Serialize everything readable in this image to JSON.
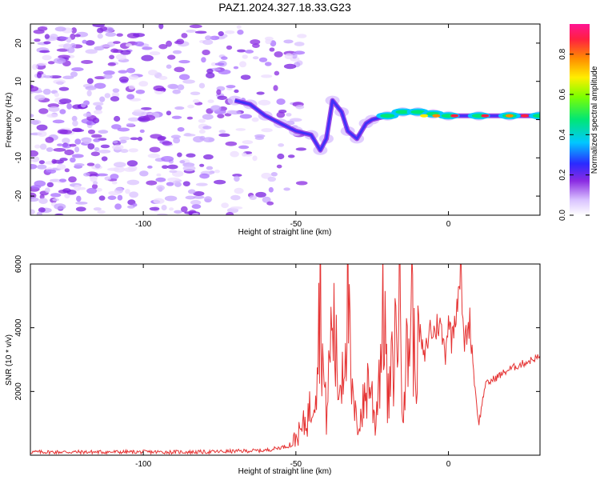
{
  "title": "PAZ1.2024.327.18.33.G23",
  "chart_data": [
    {
      "type": "heatmap",
      "xlabel": "Height of straight line (km)",
      "ylabel": "Frequency (Hz)",
      "xlim": [
        -137,
        30
      ],
      "ylim": [
        -25,
        25
      ],
      "xticks": [
        -100,
        -50,
        0
      ],
      "yticks": [
        -20,
        -10,
        0,
        10,
        20
      ],
      "colorbar": {
        "label": "Normalized spectral amplitude",
        "range": [
          0,
          0.95
        ],
        "ticks": [
          "0.0",
          "0.2",
          "0.4",
          "0.6",
          "0.8"
        ]
      },
      "signal_track": [
        {
          "x": -70,
          "y": 5
        },
        {
          "x": -65,
          "y": 4
        },
        {
          "x": -60,
          "y": 1
        },
        {
          "x": -55,
          "y": -1
        },
        {
          "x": -50,
          "y": -3
        },
        {
          "x": -45,
          "y": -4
        },
        {
          "x": -42,
          "y": -8
        },
        {
          "x": -40,
          "y": -5
        },
        {
          "x": -38,
          "y": 5
        },
        {
          "x": -35,
          "y": 2
        },
        {
          "x": -33,
          "y": -3
        },
        {
          "x": -30,
          "y": -5
        },
        {
          "x": -27,
          "y": -1
        },
        {
          "x": -25,
          "y": 0
        },
        {
          "x": -20,
          "y": 1
        },
        {
          "x": -15,
          "y": 2
        },
        {
          "x": -10,
          "y": 2
        },
        {
          "x": -5,
          "y": 1.5
        },
        {
          "x": 0,
          "y": 1
        },
        {
          "x": 10,
          "y": 1
        },
        {
          "x": 20,
          "y": 1
        },
        {
          "x": 30,
          "y": 1
        }
      ]
    },
    {
      "type": "line",
      "xlabel": "Height of straight line (km)",
      "ylabel": "SNR (10 * v/v)",
      "xlim": [
        -137,
        30
      ],
      "ylim": [
        0,
        6000
      ],
      "xticks": [
        -100,
        -50,
        0
      ],
      "yticks": [
        2000,
        4000,
        6000
      ],
      "series": [
        {
          "color": "#e53333",
          "x": [
            -137,
            -120,
            -100,
            -80,
            -60,
            -52,
            -48,
            -45,
            -43,
            -42,
            -41,
            -40,
            -38,
            -36,
            -34,
            -33,
            -32,
            -30,
            -28,
            -26,
            -24,
            -22,
            -21,
            -20,
            -18,
            -16,
            -15,
            -13,
            -12,
            -11,
            -10,
            -8,
            -6,
            -5,
            -3,
            -1,
            0,
            1,
            3,
            4,
            5,
            7,
            8,
            9,
            10,
            12,
            15,
            20,
            25,
            30
          ],
          "y": [
            100,
            100,
            100,
            100,
            150,
            300,
            800,
            1500,
            3000,
            5600,
            2500,
            1200,
            4500,
            2000,
            3500,
            5700,
            2000,
            900,
            1500,
            2500,
            1000,
            3500,
            5000,
            1500,
            3000,
            5200,
            2000,
            3500,
            5000,
            2500,
            4200,
            3000,
            4000,
            3800,
            4200,
            3200,
            4400,
            3600,
            5000,
            6000,
            3500,
            4200,
            3000,
            1800,
            1000,
            2200,
            2400,
            2700,
            2900,
            3100
          ]
        }
      ]
    }
  ]
}
